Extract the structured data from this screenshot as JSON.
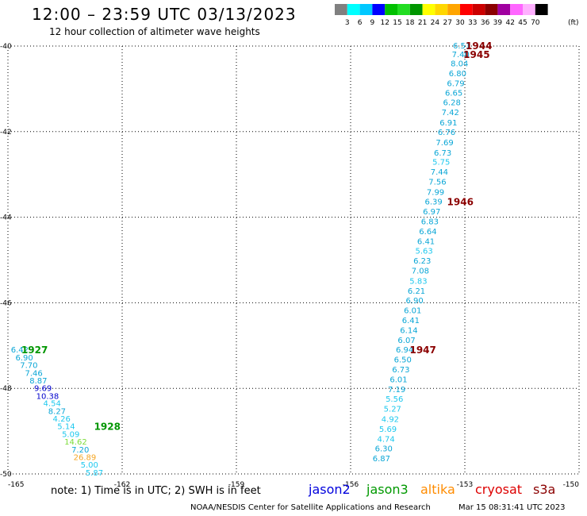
{
  "header": {
    "title": "12:00 – 23:59 UTC 03/13/2023",
    "subtitle": "12 hour collection of altimeter wave heights"
  },
  "footer": {
    "note": "note:  1) Time is in UTC;  2) SWH is in feet",
    "credit": "NOAA/NESDIS Center for Satellite Applications and Research",
    "timestamp": "Mar 15 08:31:41 UTC 2023"
  },
  "satellites": [
    {
      "name": "jason2",
      "color": "#0000dd"
    },
    {
      "name": "jason3",
      "color": "#009900"
    },
    {
      "name": "altika",
      "color": "#ff8c00"
    },
    {
      "name": "cryosat",
      "color": "#dd0000"
    },
    {
      "name": "s3a",
      "color": "#8b0000"
    }
  ],
  "chart_data": {
    "type": "scatter",
    "title": "12:00 – 23:59 UTC 03/13/2023",
    "subtitle": "12 hour collection of altimeter wave heights",
    "xlim": [
      -165,
      -150
    ],
    "ylim": [
      -50,
      -40
    ],
    "xticks": [
      -165,
      -162,
      -159,
      -156,
      -153,
      -150
    ],
    "yticks": [
      -40,
      -42,
      -44,
      -46,
      -48,
      -50
    ],
    "grid": true,
    "colorbar": {
      "unit": "(ft)",
      "labels": [
        "3",
        "6",
        "9",
        "12",
        "15",
        "18",
        "21",
        "24",
        "27",
        "30",
        "33",
        "36",
        "39",
        "42",
        "45",
        "70"
      ],
      "colors": [
        "#808080",
        "#00ffff",
        "#00c8ff",
        "#0000ff",
        "#00c000",
        "#22dd22",
        "#009600",
        "#ffff00",
        "#ffd700",
        "#ffa500",
        "#ff0000",
        "#cc0000",
        "#8b0000",
        "#a000a0",
        "#ff66ff",
        "#ffb0ff",
        "#000000"
      ]
    },
    "tracks": [
      {
        "time_label": "1944",
        "label_lon": -152.63,
        "label_lat": -40.0,
        "label_color": "#8b0000",
        "points": [
          {
            "lon": -153.08,
            "lat": -40.0,
            "v": "6.51"
          }
        ]
      },
      {
        "time_label": "1945",
        "label_lon": -152.69,
        "label_lat": -40.2,
        "label_color": "#8b0000",
        "points": [
          {
            "lon": -153.11,
            "lat": -40.2,
            "v": "7.40"
          },
          {
            "lon": -153.14,
            "lat": -40.42,
            "v": "8.04"
          },
          {
            "lon": -153.19,
            "lat": -40.65,
            "v": "6.80"
          },
          {
            "lon": -153.24,
            "lat": -40.88,
            "v": "6.79"
          },
          {
            "lon": -153.29,
            "lat": -41.1,
            "v": "6.65"
          },
          {
            "lon": -153.34,
            "lat": -41.33,
            "v": "6.28"
          },
          {
            "lon": -153.38,
            "lat": -41.56,
            "v": "7.42"
          },
          {
            "lon": -153.43,
            "lat": -41.8,
            "v": "6.91"
          },
          {
            "lon": -153.48,
            "lat": -42.02,
            "v": "6.76"
          },
          {
            "lon": -153.53,
            "lat": -42.26,
            "v": "7.69"
          },
          {
            "lon": -153.58,
            "lat": -42.5,
            "v": "6.73"
          },
          {
            "lon": -153.62,
            "lat": -42.72,
            "v": "5.75"
          },
          {
            "lon": -153.67,
            "lat": -42.95,
            "v": "7.44"
          },
          {
            "lon": -153.72,
            "lat": -43.18,
            "v": "7.56"
          },
          {
            "lon": -153.77,
            "lat": -43.42,
            "v": "7.99"
          }
        ]
      },
      {
        "time_label": "1946",
        "label_lon": -153.12,
        "label_lat": -43.65,
        "label_color": "#8b0000",
        "points": [
          {
            "lon": -153.82,
            "lat": -43.65,
            "v": "6.39"
          },
          {
            "lon": -153.87,
            "lat": -43.88,
            "v": "6.97"
          },
          {
            "lon": -153.92,
            "lat": -44.11,
            "v": "6.83"
          },
          {
            "lon": -153.97,
            "lat": -44.34,
            "v": "6.64"
          },
          {
            "lon": -154.02,
            "lat": -44.57,
            "v": "6.41"
          },
          {
            "lon": -154.07,
            "lat": -44.8,
            "v": "5.63"
          },
          {
            "lon": -154.12,
            "lat": -45.03,
            "v": "6.23"
          },
          {
            "lon": -154.17,
            "lat": -45.26,
            "v": "7.08"
          },
          {
            "lon": -154.22,
            "lat": -45.5,
            "v": "5.83"
          },
          {
            "lon": -154.27,
            "lat": -45.73,
            "v": "6.21"
          },
          {
            "lon": -154.32,
            "lat": -45.96,
            "v": "6.90"
          },
          {
            "lon": -154.37,
            "lat": -46.19,
            "v": "6.01"
          },
          {
            "lon": -154.42,
            "lat": -46.42,
            "v": "6.41"
          },
          {
            "lon": -154.47,
            "lat": -46.65,
            "v": "6.14"
          },
          {
            "lon": -154.53,
            "lat": -46.88,
            "v": "6.07"
          }
        ]
      },
      {
        "time_label": "1947",
        "label_lon": -154.1,
        "label_lat": -47.11,
        "label_color": "#8b0000",
        "points": [
          {
            "lon": -154.58,
            "lat": -47.11,
            "v": "6.94"
          },
          {
            "lon": -154.63,
            "lat": -47.34,
            "v": "6.50"
          },
          {
            "lon": -154.68,
            "lat": -47.57,
            "v": "6.73"
          },
          {
            "lon": -154.74,
            "lat": -47.8,
            "v": "6.01"
          },
          {
            "lon": -154.79,
            "lat": -48.03,
            "v": "7.19"
          },
          {
            "lon": -154.85,
            "lat": -48.26,
            "v": "5.56"
          },
          {
            "lon": -154.9,
            "lat": -48.49,
            "v": "5.27"
          },
          {
            "lon": -154.96,
            "lat": -48.73,
            "v": "4.92"
          },
          {
            "lon": -155.02,
            "lat": -48.96,
            "v": "5.69"
          },
          {
            "lon": -155.07,
            "lat": -49.19,
            "v": "4.74"
          },
          {
            "lon": -155.13,
            "lat": -49.42,
            "v": "6.30"
          },
          {
            "lon": -155.19,
            "lat": -49.65,
            "v": "6.87"
          }
        ]
      },
      {
        "time_label": "1927",
        "label_lon": -164.3,
        "label_lat": -47.11,
        "label_color": "#009600",
        "points": [
          {
            "lon": -164.69,
            "lat": -47.11,
            "v": "6.42"
          },
          {
            "lon": -164.57,
            "lat": -47.29,
            "v": "6.90"
          },
          {
            "lon": -164.45,
            "lat": -47.47,
            "v": "7.70"
          },
          {
            "lon": -164.32,
            "lat": -47.65,
            "v": "7.46"
          },
          {
            "lon": -164.2,
            "lat": -47.83,
            "v": "8.87"
          },
          {
            "lon": -164.08,
            "lat": -48.01,
            "v": "9.69"
          },
          {
            "lon": -163.96,
            "lat": -48.19,
            "v": "10.38"
          },
          {
            "lon": -163.84,
            "lat": -48.36,
            "v": "4.54"
          },
          {
            "lon": -163.71,
            "lat": -48.54,
            "v": "8.27"
          },
          {
            "lon": -163.59,
            "lat": -48.72,
            "v": "4.26"
          },
          {
            "lon": -163.47,
            "lat": -48.9,
            "v": "5.14"
          }
        ]
      },
      {
        "time_label": "1928",
        "label_lon": -162.39,
        "label_lat": -48.9,
        "label_color": "#009600",
        "points": [
          {
            "lon": -163.35,
            "lat": -49.08,
            "v": "5.09"
          },
          {
            "lon": -163.22,
            "lat": -49.26,
            "v": "14.62"
          },
          {
            "lon": -163.1,
            "lat": -49.44,
            "v": "7.20"
          },
          {
            "lon": -162.98,
            "lat": -49.62,
            "v": "26.89"
          },
          {
            "lon": -162.86,
            "lat": -49.8,
            "v": "5.00"
          },
          {
            "lon": -162.73,
            "lat": -49.98,
            "v": "5.87"
          }
        ]
      }
    ]
  }
}
